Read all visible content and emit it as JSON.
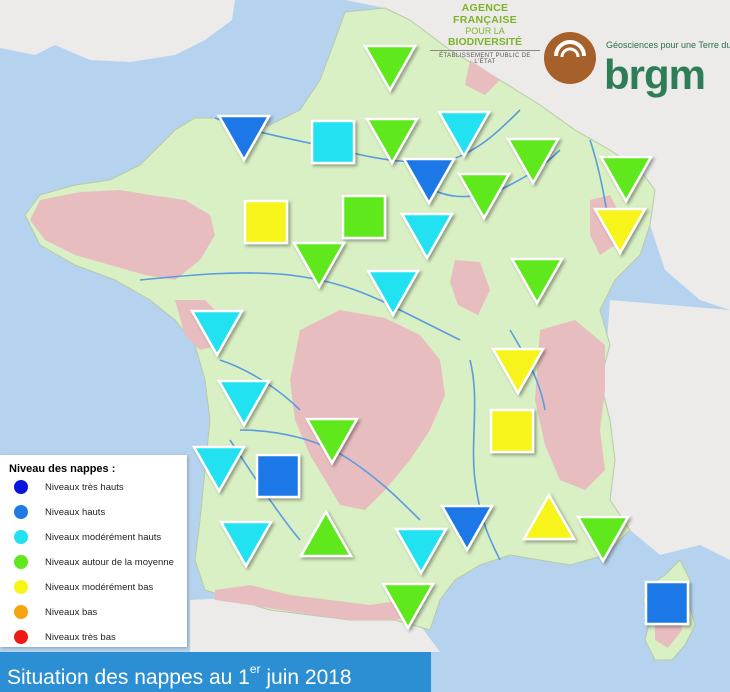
{
  "legend": {
    "title": "Niveau des nappes :",
    "items": [
      {
        "key": "tres_hauts",
        "label": "Niveaux très hauts",
        "color": "#0a14dc"
      },
      {
        "key": "hauts",
        "label": "Niveaux hauts",
        "color": "#1f78e6"
      },
      {
        "key": "moderement_hauts",
        "label": "Niveaux modérément hauts",
        "color": "#22e2f2"
      },
      {
        "key": "moyenne",
        "label": "Niveaux autour de la moyenne",
        "color": "#5fe81c"
      },
      {
        "key": "moderement_bas",
        "label": "Niveaux modérément bas",
        "color": "#f7f41a"
      },
      {
        "key": "bas",
        "label": "Niveaux bas",
        "color": "#f6a511"
      },
      {
        "key": "tres_bas",
        "label": "Niveaux très bas",
        "color": "#ee1b14"
      }
    ]
  },
  "caption": {
    "text_main": "Situation des nappes au 1",
    "text_sup": "er",
    "text_end": " juin 2018"
  },
  "logos": {
    "afb_line1": "AGENCE FRANÇAISE",
    "afb_line2a": "POUR LA ",
    "afb_line2b": "BIODIVERSITÉ",
    "afb_line3": "ÉTABLISSEMENT PUBLIC DE L'ÉTAT",
    "brgm_tagline": "Géosciences pour une Terre durable",
    "brgm_word": "brgm"
  },
  "colors": {
    "sea": "#b5d3ee",
    "land": "#d9efc4",
    "neighbors": "#ecebea",
    "relief": "#e8bdbf",
    "rivers": "#5b9be0"
  },
  "icons": {
    "down_triangle": "trend-down-icon",
    "up_triangle": "trend-up-icon",
    "square": "trend-stable-icon"
  },
  "indicators": [
    {
      "name": "nord-pas-de-calais",
      "shape": "down",
      "level": "moyenne"
    },
    {
      "name": "basse-normandie",
      "shape": "down",
      "level": "hauts"
    },
    {
      "name": "haute-normandie",
      "shape": "square",
      "level": "moderement_hauts"
    },
    {
      "name": "picardie",
      "shape": "down",
      "level": "moyenne"
    },
    {
      "name": "champagne-nord",
      "shape": "down",
      "level": "moderement_hauts"
    },
    {
      "name": "ardennes-lorraine",
      "shape": "down",
      "level": "moyenne"
    },
    {
      "name": "alsace",
      "shape": "down",
      "level": "moyenne"
    },
    {
      "name": "ile-de-france",
      "shape": "down",
      "level": "hauts"
    },
    {
      "name": "champagne-sud",
      "shape": "down",
      "level": "moyenne"
    },
    {
      "name": "vosges",
      "shape": "down",
      "level": "moderement_bas"
    },
    {
      "name": "maine",
      "shape": "square",
      "level": "moderement_bas"
    },
    {
      "name": "beauce",
      "shape": "square",
      "level": "moyenne"
    },
    {
      "name": "loiret",
      "shape": "down",
      "level": "moderement_hauts"
    },
    {
      "name": "touraine",
      "shape": "down",
      "level": "moyenne"
    },
    {
      "name": "bourgogne",
      "shape": "down",
      "level": "moyenne"
    },
    {
      "name": "berry",
      "shape": "down",
      "level": "moderement_hauts"
    },
    {
      "name": "vendee",
      "shape": "down",
      "level": "moderement_hauts"
    },
    {
      "name": "rhone-nord",
      "shape": "down",
      "level": "moderement_bas"
    },
    {
      "name": "charentes",
      "shape": "down",
      "level": "moderement_hauts"
    },
    {
      "name": "limousin",
      "shape": "down",
      "level": "moyenne"
    },
    {
      "name": "rhone-alpes",
      "shape": "square",
      "level": "moderement_bas"
    },
    {
      "name": "gironde",
      "shape": "down",
      "level": "moderement_hauts"
    },
    {
      "name": "landes",
      "shape": "square",
      "level": "hauts"
    },
    {
      "name": "pays-basque",
      "shape": "down",
      "level": "moderement_hauts"
    },
    {
      "name": "midi-pyrenees",
      "shape": "up",
      "level": "moyenne"
    },
    {
      "name": "aude",
      "shape": "down",
      "level": "moderement_hauts"
    },
    {
      "name": "herault",
      "shape": "down",
      "level": "hauts"
    },
    {
      "name": "pyrenees-orientales",
      "shape": "down",
      "level": "moyenne"
    },
    {
      "name": "provence",
      "shape": "up",
      "level": "moderement_bas"
    },
    {
      "name": "alpes-maritimes",
      "shape": "down",
      "level": "moyenne"
    },
    {
      "name": "corse",
      "shape": "square",
      "level": "hauts"
    }
  ]
}
